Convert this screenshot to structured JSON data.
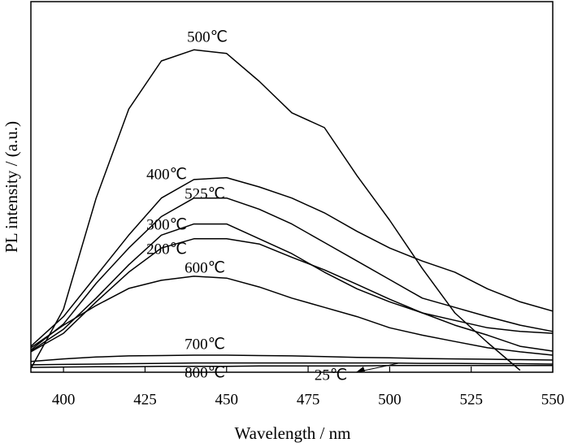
{
  "chart_data": {
    "type": "line",
    "xlabel": "Wavelength / nm",
    "ylabel": "PL intensity / (a.u.)",
    "x": [
      390,
      400,
      410,
      420,
      430,
      440,
      450,
      460,
      470,
      480,
      490,
      500,
      510,
      520,
      530,
      540,
      550
    ],
    "xlim": [
      390,
      550
    ],
    "xticks": [
      400,
      425,
      450,
      475,
      500,
      525,
      550
    ],
    "ylim": [
      0,
      100
    ],
    "yticks": [],
    "series": [
      {
        "name": "500℃",
        "color": "#000000",
        "values": [
          1,
          17,
          47,
          71,
          84,
          87,
          86,
          78.5,
          70,
          66,
          53,
          41,
          28,
          16,
          8,
          0.5,
          null
        ]
      },
      {
        "name": "400℃",
        "color": "#000000",
        "values": [
          7,
          15,
          26,
          37,
          47,
          52,
          52.5,
          50,
          47,
          43,
          38,
          33.5,
          30,
          27,
          22.5,
          19,
          16.5
        ]
      },
      {
        "name": "525℃",
        "color": "#000000",
        "values": [
          6,
          13,
          24,
          33.5,
          42,
          47,
          47,
          44,
          40,
          35,
          30,
          25,
          20,
          17.5,
          15,
          12.7,
          11
        ]
      },
      {
        "name": "300℃",
        "color": "#000000",
        "values": [
          5.7,
          11.6,
          20,
          29,
          37,
          40,
          40,
          36,
          32,
          27,
          22.5,
          19,
          16,
          14,
          12,
          11,
          10.5
        ]
      },
      {
        "name": "200℃",
        "color": "#000000",
        "values": [
          5.5,
          10.5,
          19,
          27,
          33.5,
          36,
          36,
          34.6,
          31,
          27.6,
          23.7,
          19.7,
          16,
          12.7,
          10,
          7,
          5.7
        ]
      },
      {
        "name": "600℃",
        "color": "#000000",
        "values": [
          6.6,
          12.7,
          18,
          22.6,
          24.8,
          25.9,
          25.4,
          23,
          20,
          17.5,
          15,
          12,
          10,
          8.3,
          6.6,
          5.5,
          4.6
        ]
      },
      {
        "name": "700℃",
        "color": "#000000",
        "values": [
          2.9,
          3.6,
          4.1,
          4.4,
          4.5,
          4.6,
          4.6,
          4.5,
          4.4,
          4.2,
          4.0,
          3.9,
          3.7,
          3.6,
          3.5,
          3.4,
          3.3
        ]
      },
      {
        "name": "800℃",
        "color": "#000000",
        "values": [
          1.3,
          1.4,
          1.5,
          1.5,
          1.6,
          1.6,
          1.6,
          1.7,
          1.7,
          1.7,
          1.7,
          1.8,
          1.8,
          1.8,
          1.8,
          1.8,
          1.8
        ]
      },
      {
        "name": "25℃",
        "color": "#000000",
        "values": [
          2.0,
          2.1,
          2.2,
          2.3,
          2.4,
          2.5,
          2.5,
          2.5,
          2.5,
          2.5,
          2.5,
          2.5,
          2.4,
          2.4,
          2.3,
          2.3,
          2.2
        ]
      }
    ]
  }
}
